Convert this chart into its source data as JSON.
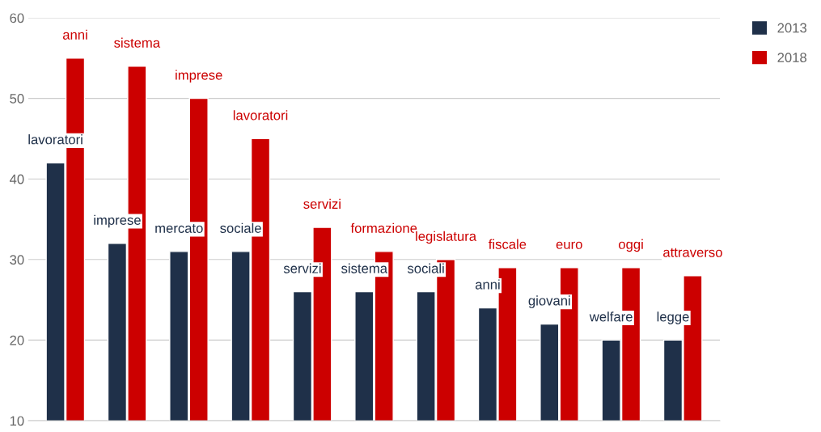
{
  "chart_data": {
    "type": "bar",
    "categories": [
      null,
      null,
      null,
      null,
      null,
      null,
      null,
      null,
      null,
      null,
      null
    ],
    "series": [
      {
        "name": "2013",
        "color": "#1f3049",
        "values": [
          42,
          32,
          31,
          31,
          26,
          26,
          26,
          24,
          22,
          20,
          20
        ],
        "value_labels": [
          "lavoratori",
          "imprese",
          "mercato",
          "sociale",
          "servizi",
          "sistema",
          "sociali",
          "anni",
          "giovani",
          "welfare",
          "legge"
        ]
      },
      {
        "name": "2018",
        "color": "#cc0000",
        "values": [
          55,
          54,
          50,
          45,
          34,
          31,
          30,
          29,
          29,
          29,
          28
        ],
        "value_labels": [
          "anni",
          "sistema",
          "imprese",
          "lavoratori",
          "servizi",
          "formazione",
          "legislatura",
          "fiscale",
          "euro",
          "oggi",
          "attraverso"
        ]
      }
    ],
    "ylim": [
      10,
      60
    ],
    "yticks": [
      10,
      20,
      30,
      40,
      50,
      60
    ],
    "grid": "y",
    "legend": "top right"
  }
}
